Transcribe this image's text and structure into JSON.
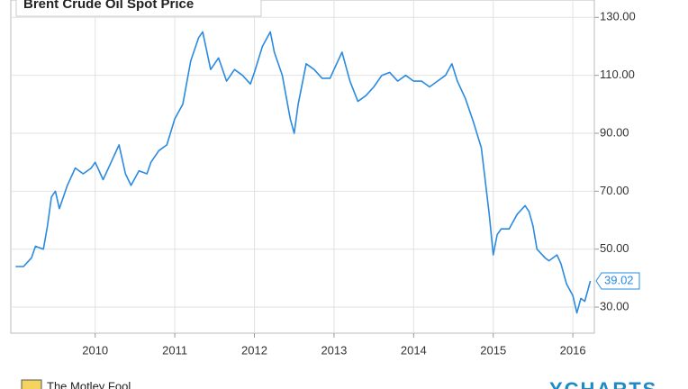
{
  "chart_data": {
    "type": "line",
    "title": "Brent Crude Oil Spot Price",
    "x": [
      2009.0,
      2009.1,
      2009.2,
      2009.25,
      2009.35,
      2009.4,
      2009.45,
      2009.5,
      2009.55,
      2009.65,
      2009.75,
      2009.85,
      2009.95,
      2010.0,
      2010.1,
      2010.2,
      2010.3,
      2010.38,
      2010.45,
      2010.55,
      2010.65,
      2010.7,
      2010.8,
      2010.9,
      2011.0,
      2011.1,
      2011.2,
      2011.3,
      2011.35,
      2011.45,
      2011.55,
      2011.65,
      2011.75,
      2011.85,
      2011.95,
      2012.0,
      2012.1,
      2012.2,
      2012.25,
      2012.35,
      2012.45,
      2012.5,
      2012.55,
      2012.65,
      2012.75,
      2012.85,
      2012.95,
      2013.0,
      2013.1,
      2013.2,
      2013.3,
      2013.4,
      2013.5,
      2013.6,
      2013.7,
      2013.8,
      2013.9,
      2014.0,
      2014.1,
      2014.2,
      2014.3,
      2014.4,
      2014.48,
      2014.55,
      2014.65,
      2014.75,
      2014.85,
      2014.95,
      2015.0,
      2015.05,
      2015.1,
      2015.2,
      2015.3,
      2015.4,
      2015.45,
      2015.5,
      2015.55,
      2015.65,
      2015.7,
      2015.8,
      2015.85,
      2015.92,
      2016.0,
      2016.05,
      2016.1,
      2016.15,
      2016.22
    ],
    "series": [
      {
        "color": "#2a8ae0",
        "values": [
          44,
          44,
          47,
          51,
          50,
          58,
          68,
          70,
          64,
          72,
          78,
          76,
          78,
          80,
          74,
          80,
          86,
          76,
          72,
          77,
          76,
          80,
          84,
          86,
          95,
          100,
          115,
          123,
          125,
          112,
          116,
          108,
          112,
          110,
          107,
          111,
          120,
          125,
          118,
          110,
          95,
          90,
          100,
          114,
          112,
          109,
          109,
          112,
          118,
          108,
          101,
          103,
          106,
          110,
          111,
          108,
          110,
          108,
          108,
          106,
          108,
          110,
          114,
          108,
          102,
          94,
          85,
          62,
          48,
          55,
          57,
          57,
          62,
          65,
          63,
          58,
          50,
          47,
          46,
          48,
          45,
          38,
          34,
          28,
          33,
          32,
          39.02
        ]
      }
    ],
    "xlim": [
      2008.94,
      2016.27
    ],
    "xticks": [
      2010,
      2011,
      2012,
      2013,
      2014,
      2015,
      2016
    ],
    "ylim": [
      21,
      136
    ],
    "yticks": [
      {
        "value": 30,
        "label": "30.00"
      },
      {
        "value": 50,
        "label": "50.00"
      },
      {
        "value": 70,
        "label": "70.00"
      },
      {
        "value": 90,
        "label": "90.00"
      },
      {
        "value": 110,
        "label": "110.00"
      },
      {
        "value": 130,
        "label": "130.00"
      }
    ],
    "grid": true,
    "footer_left": "The Motley Fool",
    "footer_right": "YCHARTS"
  }
}
